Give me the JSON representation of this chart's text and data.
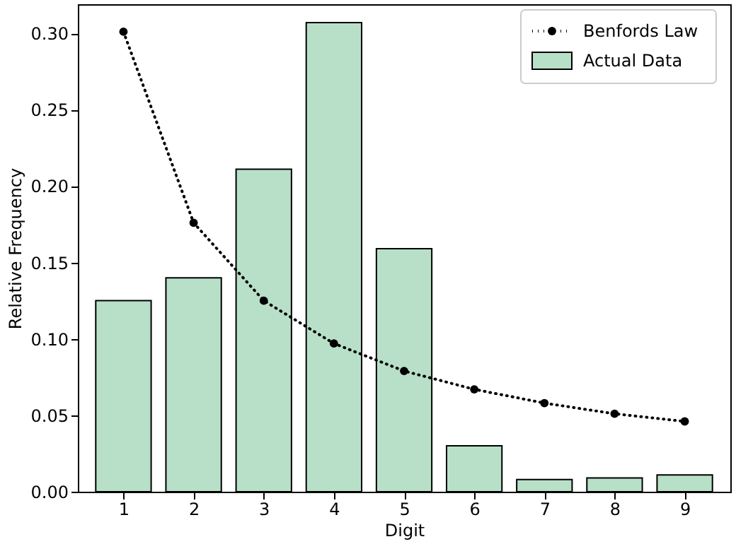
{
  "chart_data": {
    "type": "bar",
    "xlabel": "Digit",
    "ylabel": "Relative Frequency",
    "x": [
      1,
      2,
      3,
      4,
      5,
      6,
      7,
      8,
      9
    ],
    "series": [
      {
        "name": "Benfords Law",
        "type": "line",
        "color": "#000000",
        "values": [
          0.301,
          0.176,
          0.125,
          0.097,
          0.079,
          0.067,
          0.058,
          0.051,
          0.046
        ]
      },
      {
        "name": "Actual Data",
        "color": "#b8e0c8",
        "values": [
          0.125,
          0.14,
          0.211,
          0.307,
          0.159,
          0.03,
          0.008,
          0.009,
          0.011
        ]
      }
    ],
    "xlim": [
      0.35,
      9.65
    ],
    "xticks": [
      1,
      2,
      3,
      4,
      5,
      6,
      7,
      8,
      9
    ],
    "ylim": [
      0,
      0.319
    ],
    "yticks": [
      {
        "value": 0,
        "label": "0.00"
      },
      {
        "value": 0.05,
        "label": "0.05"
      },
      {
        "value": 0.1,
        "label": "0.10"
      },
      {
        "value": 0.15,
        "label": "0.15"
      },
      {
        "value": 0.2,
        "label": "0.20"
      },
      {
        "value": 0.25,
        "label": "0.25"
      },
      {
        "value": 0.3,
        "label": "0.30"
      }
    ],
    "grid": false,
    "legend": "top right",
    "marker": "circle",
    "line_style": "dotted"
  }
}
